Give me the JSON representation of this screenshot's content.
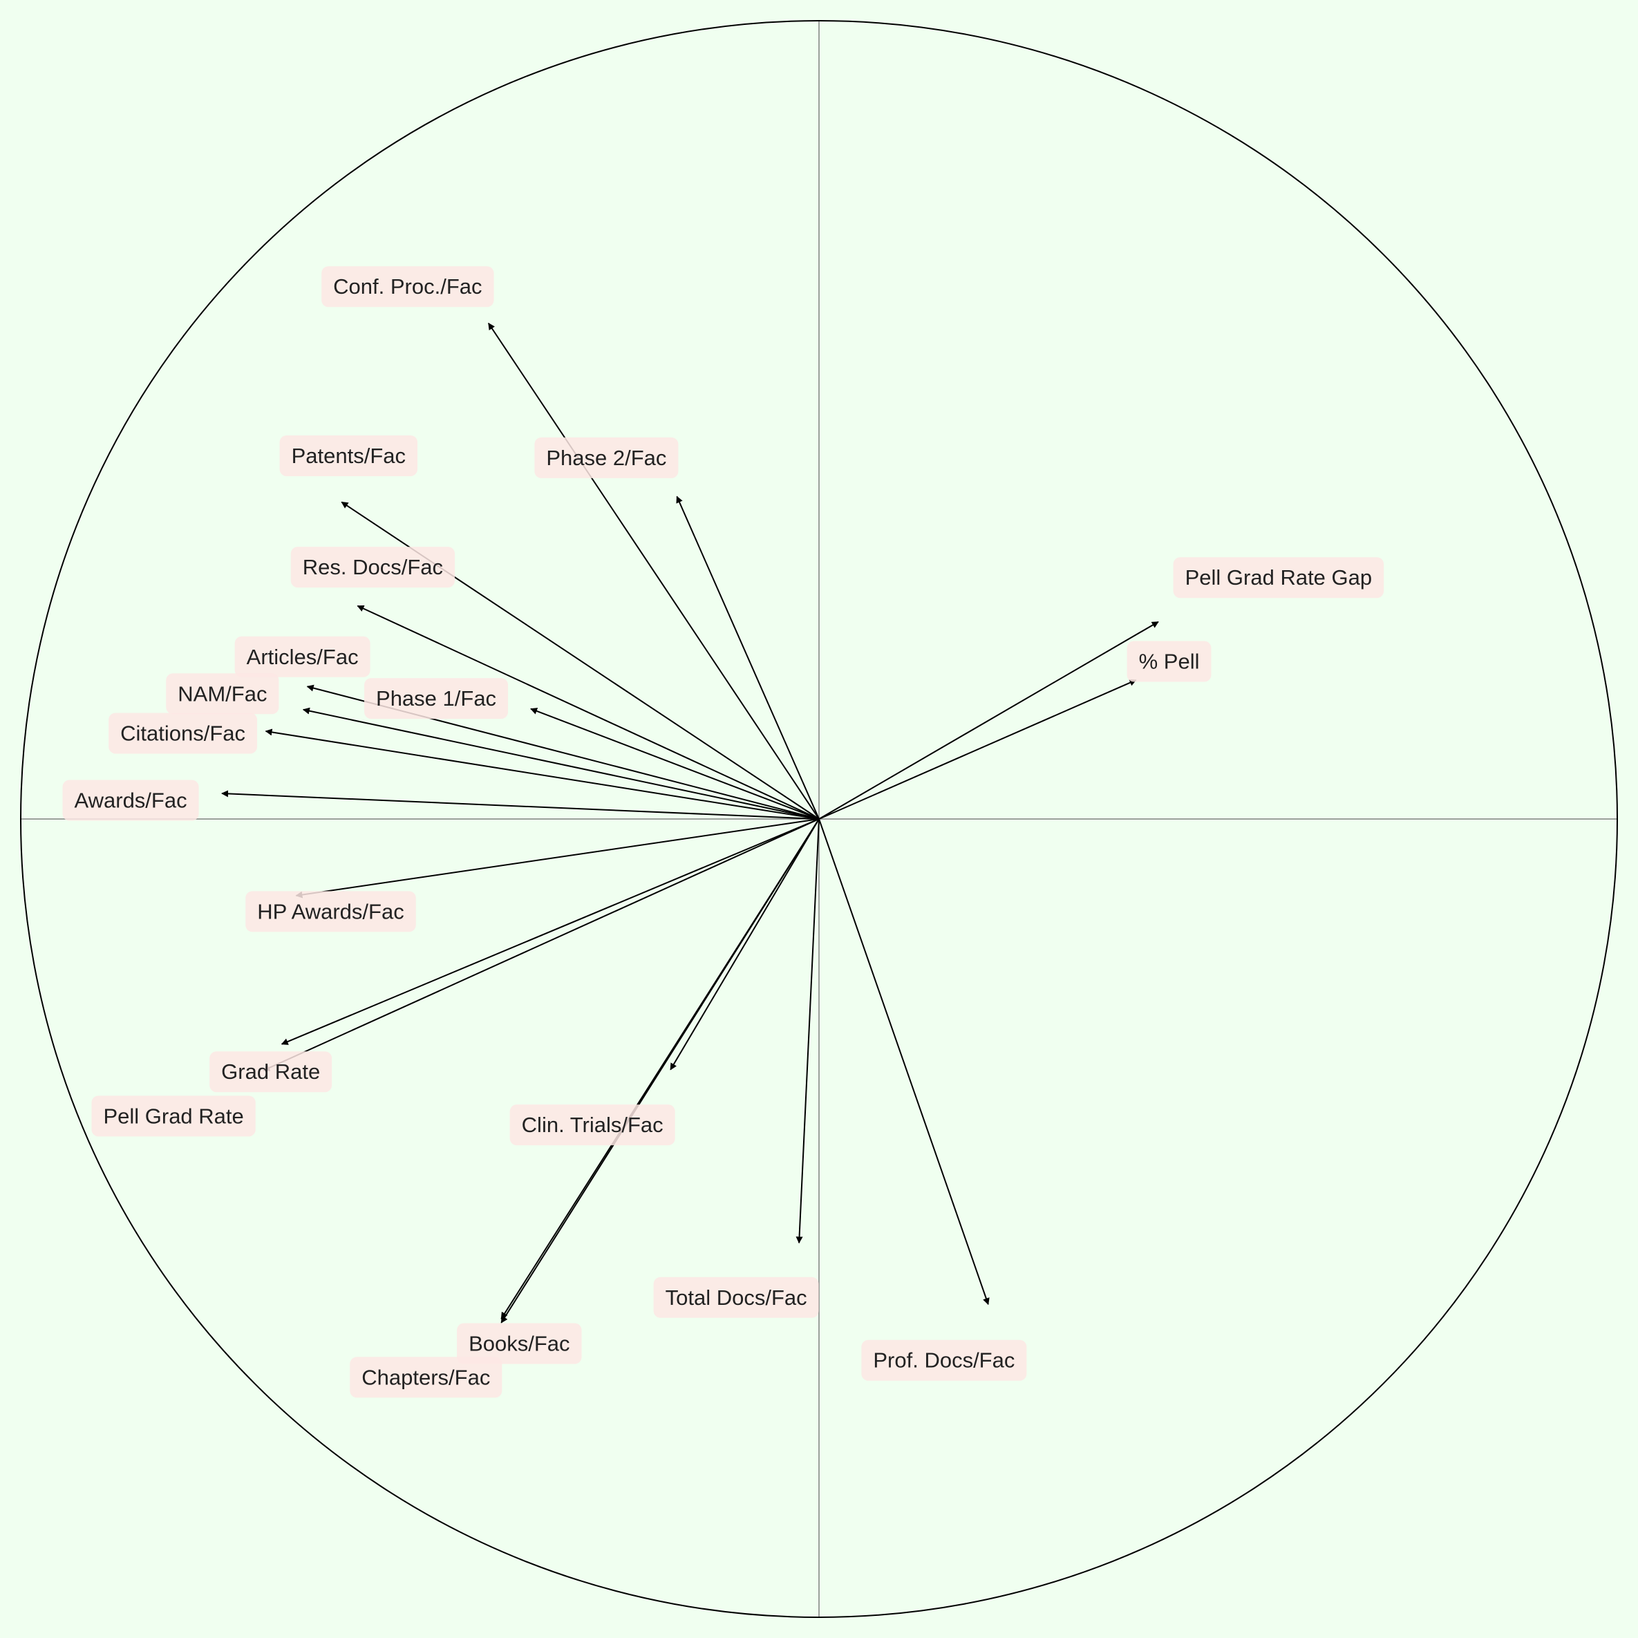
{
  "colors": {
    "background": "#F0FFF0",
    "circle": "#000000",
    "axis": "#808080",
    "arrow": "#000000",
    "label_box": "#FDE8E4",
    "label_text": "#222222"
  },
  "chart_data": {
    "type": "biplot-correlation-circle",
    "title": "",
    "xlabel": "",
    "ylabel": "",
    "xlim": [
      -1,
      1
    ],
    "ylim": [
      -1,
      1
    ],
    "grid": false,
    "legend": "none",
    "unit_circle": true,
    "zero_axes": true,
    "vectors": [
      {
        "name": "Conf. Proc./Fac",
        "x": -0.414,
        "y": 0.621
      },
      {
        "name": "Phase 2/Fac",
        "x": -0.178,
        "y": 0.404
      },
      {
        "name": "Patents/Fac",
        "x": -0.598,
        "y": 0.397
      },
      {
        "name": "Res. Docs/Fac",
        "x": -0.578,
        "y": 0.267
      },
      {
        "name": "Articles/Fac",
        "x": -0.641,
        "y": 0.166
      },
      {
        "name": "Phase 1/Fac",
        "x": -0.361,
        "y": 0.138
      },
      {
        "name": "NAM/Fac",
        "x": -0.646,
        "y": 0.137
      },
      {
        "name": "Citations/Fac",
        "x": -0.693,
        "y": 0.11
      },
      {
        "name": "Awards/Fac",
        "x": -0.748,
        "y": 0.032
      },
      {
        "name": "Pell Grad Rate Gap",
        "x": 0.425,
        "y": 0.247
      },
      {
        "name": "% Pell",
        "x": 0.397,
        "y": 0.174
      },
      {
        "name": "HP Awards/Fac",
        "x": -0.655,
        "y": -0.096
      },
      {
        "name": "Grad Rate",
        "x": -0.673,
        "y": -0.282
      },
      {
        "name": "Pell Grad Rate",
        "x": -0.696,
        "y": -0.315
      },
      {
        "name": "Clin. Trials/Fac",
        "x": -0.186,
        "y": -0.314
      },
      {
        "name": "Books/Fac",
        "x": -0.398,
        "y": -0.626
      },
      {
        "name": "Chapters/Fac",
        "x": -0.398,
        "y": -0.631
      },
      {
        "name": "Total Docs/Fac",
        "x": -0.025,
        "y": -0.531
      },
      {
        "name": "Prof. Docs/Fac",
        "x": 0.212,
        "y": -0.608
      }
    ]
  }
}
